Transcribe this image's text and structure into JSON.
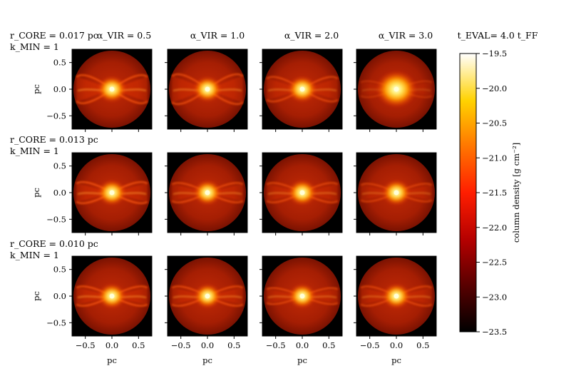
{
  "chart_data": {
    "type": "heatmap",
    "title_right": "t_EVAL= 4.0 t_FF",
    "column_titles": [
      "α_VIR = 0.5",
      "α_VIR = 1.0",
      "α_VIR = 2.0",
      "α_VIR = 3.0"
    ],
    "row_labels": [
      {
        "rcore": "r_CORE = 0.017 pc",
        "kmin": "k_MIN = 1"
      },
      {
        "rcore": "r_CORE = 0.013 pc",
        "kmin": "k_MIN = 1"
      },
      {
        "rcore": "r_CORE = 0.010 pc",
        "kmin": "k_MIN = 1"
      }
    ],
    "xlabel": "pc",
    "ylabel": "pc",
    "xlim": [
      -0.75,
      0.75
    ],
    "ylim": [
      -0.75,
      0.75
    ],
    "xticks": [
      -0.5,
      0.0,
      0.5
    ],
    "yticks": [
      0.5,
      0.0,
      -0.5
    ],
    "xtick_labels": [
      "−0.5",
      "0.0",
      "0.5"
    ],
    "ytick_labels": [
      "0.5",
      "0.0",
      "−0.5"
    ],
    "colorbar": {
      "label": "column density [g cm⁻²]",
      "range": [
        -23.5,
        -19.5
      ],
      "ticks": [
        -19.5,
        -20.0,
        -20.5,
        -21.0,
        -21.5,
        -22.0,
        -22.5,
        -23.0,
        -23.5
      ],
      "tick_labels": [
        "−19.5",
        "−20.0",
        "−20.5",
        "−21.0",
        "−21.5",
        "−22.0",
        "−22.5",
        "−23.0",
        "−23.5"
      ],
      "colormap": "hot",
      "colors": [
        "#000000",
        "#5a0000",
        "#b40000",
        "#ff1e00",
        "#ff7800",
        "#ffd200",
        "#ffffff"
      ]
    },
    "panels": [
      [
        {
          "core_brightness": 0.95,
          "filament_strength": 0.9,
          "filament_spread": 0.55
        },
        {
          "core_brightness": 0.9,
          "filament_strength": 0.75,
          "filament_spread": 0.6
        },
        {
          "core_brightness": 0.95,
          "filament_strength": 0.6,
          "filament_spread": 0.45
        },
        {
          "core_brightness": 1.0,
          "filament_strength": 0.1,
          "filament_spread": 0.2
        }
      ],
      [
        {
          "core_brightness": 0.9,
          "filament_strength": 0.85,
          "filament_spread": 0.35
        },
        {
          "core_brightness": 0.85,
          "filament_strength": 0.65,
          "filament_spread": 0.3
        },
        {
          "core_brightness": 0.9,
          "filament_strength": 0.6,
          "filament_spread": 0.3
        },
        {
          "core_brightness": 0.9,
          "filament_strength": 0.45,
          "filament_spread": 0.25
        }
      ],
      [
        {
          "core_brightness": 0.85,
          "filament_strength": 0.8,
          "filament_spread": 0.3
        },
        {
          "core_brightness": 0.8,
          "filament_strength": 0.7,
          "filament_spread": 0.3
        },
        {
          "core_brightness": 0.8,
          "filament_strength": 0.6,
          "filament_spread": 0.2
        },
        {
          "core_brightness": 0.85,
          "filament_strength": 0.55,
          "filament_spread": 0.3
        }
      ]
    ]
  }
}
